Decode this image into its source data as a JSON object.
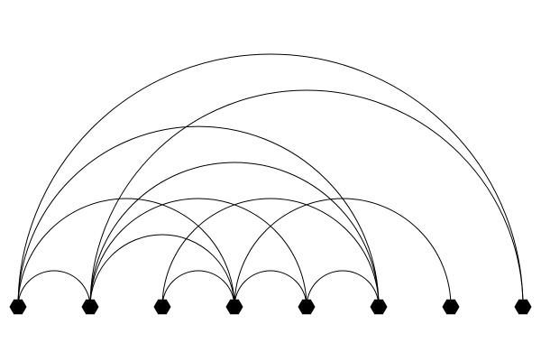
{
  "diagram": {
    "type": "arc-diagram",
    "node_count": 8,
    "node_shape": "hexagon",
    "node_color": "#000000",
    "edge_color": "#000000",
    "background": "#ffffff",
    "edges": [
      [
        0,
        1
      ],
      [
        0,
        3
      ],
      [
        0,
        5
      ],
      [
        0,
        7
      ],
      [
        1,
        3
      ],
      [
        1,
        4
      ],
      [
        1,
        5
      ],
      [
        1,
        7
      ],
      [
        2,
        3
      ],
      [
        2,
        5
      ],
      [
        3,
        4
      ],
      [
        3,
        6
      ],
      [
        4,
        5
      ]
    ]
  }
}
